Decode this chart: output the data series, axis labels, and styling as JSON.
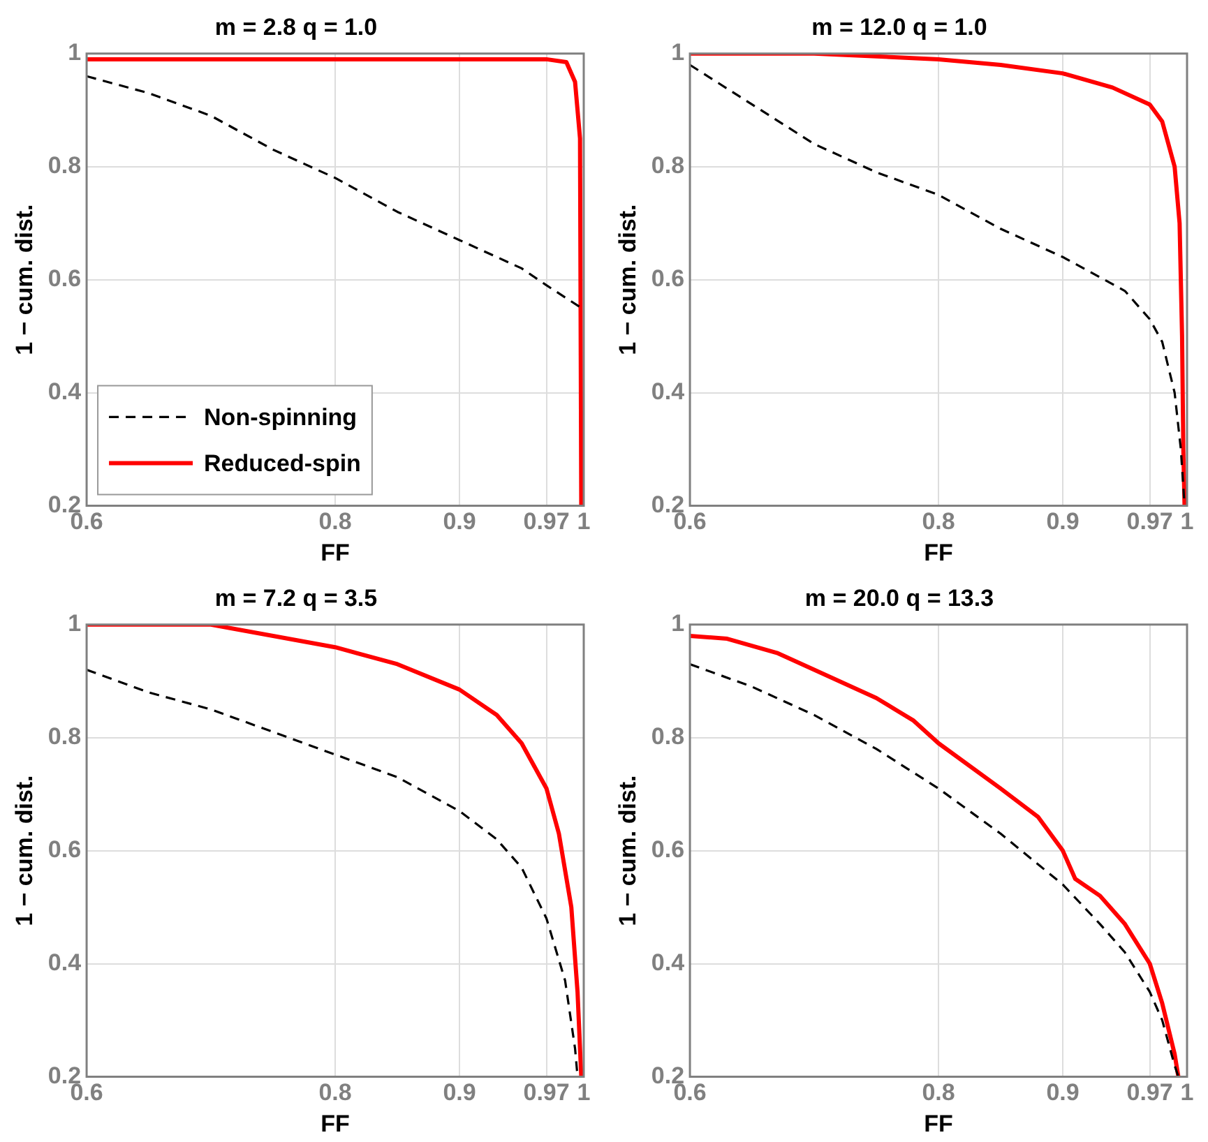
{
  "chart_data": [
    {
      "type": "line",
      "title": "m = 2.8 q = 1.0",
      "xlabel": "FF",
      "ylabel": "1 − cum. dist.",
      "xlim": [
        0.6,
        1
      ],
      "ylim": [
        0.2,
        1
      ],
      "xticks": [
        0.6,
        0.8,
        0.9,
        0.97,
        1
      ],
      "yticks": [
        0.2,
        0.4,
        0.6,
        0.8,
        1
      ],
      "grid": true,
      "legend": "bottom left",
      "marker": "none",
      "series": [
        {
          "name": "Non-spinning",
          "color": "#000000",
          "line_style": "dashed",
          "x": [
            0.6,
            0.65,
            0.7,
            0.75,
            0.8,
            0.85,
            0.9,
            0.95,
            0.97,
            0.998
          ],
          "values": [
            0.96,
            0.93,
            0.89,
            0.83,
            0.78,
            0.72,
            0.67,
            0.62,
            0.59,
            0.55
          ]
        },
        {
          "name": "Reduced-spin",
          "color": "#ff0000",
          "line_style": "solid",
          "x": [
            0.6,
            0.9,
            0.97,
            0.986,
            0.993,
            0.997,
            0.998
          ],
          "values": [
            0.99,
            0.99,
            0.99,
            0.985,
            0.95,
            0.85,
            0.2
          ]
        }
      ]
    },
    {
      "type": "line",
      "title": "m = 12.0 q = 1.0",
      "xlabel": "FF",
      "ylabel": "1 − cum. dist.",
      "xlim": [
        0.6,
        1
      ],
      "ylim": [
        0.2,
        1
      ],
      "xticks": [
        0.6,
        0.8,
        0.9,
        0.97,
        1
      ],
      "yticks": [
        0.2,
        0.4,
        0.6,
        0.8,
        1
      ],
      "grid": true,
      "marker": "none",
      "series": [
        {
          "color": "#000000",
          "line_style": "dashed",
          "x": [
            0.6,
            0.65,
            0.7,
            0.75,
            0.8,
            0.85,
            0.9,
            0.95,
            0.97,
            0.98,
            0.99,
            0.995,
            0.998
          ],
          "values": [
            0.98,
            0.91,
            0.84,
            0.79,
            0.75,
            0.69,
            0.64,
            0.58,
            0.53,
            0.49,
            0.4,
            0.3,
            0.2
          ]
        },
        {
          "color": "#ff0000",
          "line_style": "solid",
          "x": [
            0.6,
            0.7,
            0.8,
            0.85,
            0.9,
            0.94,
            0.97,
            0.98,
            0.99,
            0.994,
            0.996,
            0.997,
            0.998
          ],
          "values": [
            1,
            1,
            0.99,
            0.98,
            0.965,
            0.94,
            0.91,
            0.88,
            0.8,
            0.7,
            0.5,
            0.3,
            0.2
          ]
        }
      ]
    },
    {
      "type": "line",
      "title": "m = 7.2 q = 3.5",
      "xlabel": "FF",
      "ylabel": "1 − cum. dist.",
      "xlim": [
        0.6,
        1
      ],
      "ylim": [
        0.2,
        1
      ],
      "xticks": [
        0.6,
        0.8,
        0.9,
        0.97,
        1
      ],
      "yticks": [
        0.2,
        0.4,
        0.6,
        0.8,
        1
      ],
      "grid": true,
      "marker": "none",
      "series": [
        {
          "color": "#000000",
          "line_style": "dashed",
          "x": [
            0.6,
            0.65,
            0.7,
            0.75,
            0.8,
            0.85,
            0.9,
            0.93,
            0.95,
            0.97,
            0.985,
            0.993,
            0.995
          ],
          "values": [
            0.92,
            0.88,
            0.85,
            0.81,
            0.77,
            0.73,
            0.67,
            0.62,
            0.57,
            0.48,
            0.37,
            0.25,
            0.2
          ]
        },
        {
          "color": "#ff0000",
          "line_style": "solid",
          "x": [
            0.6,
            0.7,
            0.75,
            0.8,
            0.85,
            0.9,
            0.93,
            0.95,
            0.97,
            0.98,
            0.99,
            0.995,
            0.998
          ],
          "values": [
            1,
            1,
            0.98,
            0.96,
            0.93,
            0.885,
            0.84,
            0.79,
            0.71,
            0.63,
            0.5,
            0.35,
            0.2
          ]
        }
      ]
    },
    {
      "type": "line",
      "title": "m = 20.0 q = 13.3",
      "xlabel": "FF",
      "ylabel": "1 − cum. dist.",
      "xlim": [
        0.6,
        1
      ],
      "ylim": [
        0.2,
        1
      ],
      "xticks": [
        0.6,
        0.8,
        0.9,
        0.97,
        1
      ],
      "yticks": [
        0.2,
        0.4,
        0.6,
        0.8,
        1
      ],
      "grid": true,
      "marker": "none",
      "series": [
        {
          "color": "#000000",
          "line_style": "dashed",
          "x": [
            0.6,
            0.65,
            0.7,
            0.75,
            0.8,
            0.85,
            0.9,
            0.93,
            0.95,
            0.97,
            0.98,
            0.99,
            0.993
          ],
          "values": [
            0.93,
            0.89,
            0.84,
            0.78,
            0.71,
            0.63,
            0.54,
            0.47,
            0.42,
            0.35,
            0.3,
            0.22,
            0.2
          ]
        },
        {
          "color": "#ff0000",
          "line_style": "solid",
          "x": [
            0.6,
            0.63,
            0.67,
            0.7,
            0.75,
            0.78,
            0.8,
            0.85,
            0.88,
            0.9,
            0.91,
            0.93,
            0.95,
            0.97,
            0.98,
            0.99,
            0.993
          ],
          "values": [
            0.98,
            0.975,
            0.95,
            0.92,
            0.87,
            0.83,
            0.79,
            0.71,
            0.66,
            0.6,
            0.55,
            0.52,
            0.47,
            0.4,
            0.33,
            0.24,
            0.2
          ]
        }
      ]
    }
  ]
}
